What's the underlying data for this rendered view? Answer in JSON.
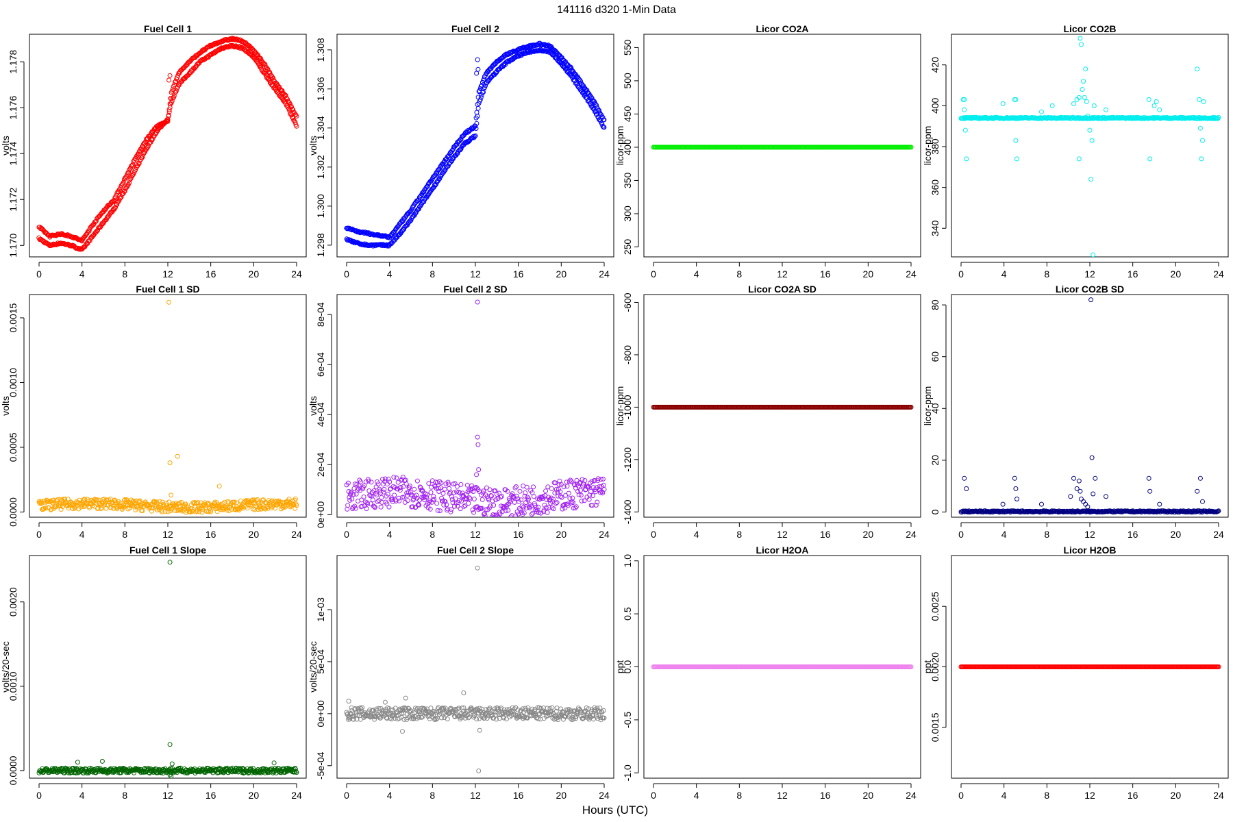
{
  "figure": {
    "title": "141116    d320    1-Min Data",
    "xlabel": "Hours (UTC)"
  },
  "chart_data": [
    {
      "type": "scatter",
      "title": "Fuel Cell 1",
      "ylabel": "volts",
      "color": "#ff0000",
      "xlim": [
        0,
        24
      ],
      "ylim": [
        1.1695,
        1.1792
      ],
      "xticks": [
        0,
        4,
        8,
        12,
        16,
        20,
        24
      ],
      "xtick_labels": [
        "0",
        "4",
        "8",
        "12",
        "16",
        "20",
        "24"
      ],
      "yticks": [
        1.17,
        1.172,
        1.174,
        1.176,
        1.178
      ],
      "ytick_labels": [
        "1.170",
        "1.172",
        "1.174",
        "1.176",
        "1.178"
      ],
      "series": [
        {
          "x": [
            0,
            1,
            2,
            3,
            4,
            5,
            6,
            7,
            8,
            9,
            10,
            11,
            12,
            12.3,
            13,
            14,
            15,
            16,
            17,
            18,
            19,
            20,
            21,
            22,
            23,
            24
          ],
          "y": [
            1.1703,
            1.17,
            1.1701,
            1.17,
            1.1698,
            1.1704,
            1.171,
            1.1716,
            1.1724,
            1.1733,
            1.1742,
            1.175,
            1.1755,
            1.1762,
            1.177,
            1.1775,
            1.178,
            1.1783,
            1.1786,
            1.1787,
            1.1786,
            1.1782,
            1.1775,
            1.1768,
            1.1762,
            1.1752
          ]
        },
        {
          "x": [
            0,
            1,
            2,
            3,
            4,
            5,
            6,
            7,
            8,
            9,
            10,
            11,
            12,
            12.3,
            13,
            14,
            15,
            16,
            17,
            18,
            19,
            20,
            21,
            22,
            23,
            24
          ],
          "y": [
            1.1708,
            1.1704,
            1.1705,
            1.1704,
            1.1702,
            1.1709,
            1.1715,
            1.172,
            1.1729,
            1.1738,
            1.1746,
            1.1752,
            1.1754,
            1.1766,
            1.1775,
            1.178,
            1.1784,
            1.1787,
            1.1789,
            1.179,
            1.1789,
            1.1785,
            1.1779,
            1.1771,
            1.1765,
            1.1756
          ]
        }
      ],
      "outliers": {
        "x": [
          12.1,
          12.2,
          12.3
        ],
        "y": [
          1.1772,
          1.1774,
          1.1764
        ]
      }
    },
    {
      "type": "scatter",
      "title": "Fuel Cell 2",
      "ylabel": "volts",
      "color": "#0000ff",
      "xlim": [
        0,
        24
      ],
      "ylim": [
        1.2974,
        1.3088
      ],
      "xticks": [
        0,
        4,
        8,
        12,
        16,
        20,
        24
      ],
      "xtick_labels": [
        "0",
        "4",
        "8",
        "12",
        "16",
        "20",
        "24"
      ],
      "yticks": [
        1.298,
        1.3,
        1.302,
        1.304,
        1.306,
        1.308
      ],
      "ytick_labels": [
        "1.298",
        "1.300",
        "1.302",
        "1.304",
        "1.306",
        "1.308"
      ],
      "series": [
        {
          "x": [
            0,
            1,
            2,
            3,
            4,
            5,
            6,
            7,
            8,
            9,
            10,
            11,
            12,
            12.3,
            13,
            14,
            15,
            16,
            17,
            18,
            19,
            20,
            21,
            22,
            23,
            24
          ],
          "y": [
            1.2983,
            1.2981,
            1.298,
            1.298,
            1.298,
            1.2986,
            1.2993,
            1.3001,
            1.3009,
            1.3017,
            1.3025,
            1.3032,
            1.3036,
            1.3052,
            1.3063,
            1.3069,
            1.3074,
            1.3077,
            1.3079,
            1.308,
            1.3079,
            1.3073,
            1.3066,
            1.3058,
            1.305,
            1.304
          ]
        },
        {
          "x": [
            0,
            1,
            2,
            3,
            4,
            5,
            6,
            7,
            8,
            9,
            10,
            11,
            12,
            12.3,
            13,
            14,
            15,
            16,
            17,
            18,
            19,
            20,
            21,
            22,
            23,
            24
          ],
          "y": [
            1.2989,
            1.2987,
            1.2986,
            1.2985,
            1.2984,
            1.2991,
            1.2998,
            1.3006,
            1.3014,
            1.3022,
            1.303,
            1.3037,
            1.3041,
            1.3058,
            1.3068,
            1.3074,
            1.3078,
            1.308,
            1.3082,
            1.3083,
            1.3082,
            1.3076,
            1.307,
            1.3062,
            1.3054,
            1.3044
          ]
        }
      ],
      "outliers": {
        "x": [
          12.1,
          12.2,
          12.25
        ],
        "y": [
          1.3068,
          1.3075,
          1.307
        ]
      }
    },
    {
      "type": "scatter",
      "title": "Licor CO2A",
      "ylabel": "licor-ppm",
      "color": "#00ee00",
      "xlim": [
        0,
        24
      ],
      "ylim": [
        235,
        570
      ],
      "xticks": [
        0,
        4,
        8,
        12,
        16,
        20,
        24
      ],
      "xtick_labels": [
        "0",
        "4",
        "8",
        "12",
        "16",
        "20",
        "24"
      ],
      "yticks": [
        250,
        300,
        350,
        400,
        450,
        500,
        550
      ],
      "ytick_labels": [
        "250",
        "300",
        "350",
        "400",
        "450",
        "500",
        "550"
      ],
      "constant": 400
    },
    {
      "type": "scatter",
      "title": "Licor CO2B",
      "ylabel": "licor-ppm",
      "color": "#00eeee",
      "xlim": [
        0,
        24
      ],
      "ylim": [
        326,
        435
      ],
      "xticks": [
        0,
        4,
        8,
        12,
        16,
        20,
        24
      ],
      "xtick_labels": [
        "0",
        "4",
        "8",
        "12",
        "16",
        "20",
        "24"
      ],
      "yticks": [
        340,
        360,
        380,
        400,
        420
      ],
      "ytick_labels": [
        "340",
        "360",
        "380",
        "400",
        "420"
      ],
      "baseline": 394,
      "outliers": {
        "x": [
          0.2,
          0.3,
          0.4,
          0.5,
          0.3,
          3.9,
          5,
          5.1,
          5.2,
          5.1,
          7.5,
          8.5,
          10.5,
          10.8,
          11,
          11,
          11.1,
          11.2,
          11.3,
          11.4,
          11.5,
          11.6,
          11.7,
          11.8,
          12,
          12.1,
          12.2,
          12.3,
          12.4,
          13.5,
          17.5,
          17.6,
          18,
          18.2,
          18.5,
          22,
          22.2,
          22.3,
          22.4,
          22.5,
          22.6
        ],
        "y": [
          403,
          398,
          388,
          374,
          403,
          401,
          403,
          383,
          374,
          403,
          397,
          400,
          401,
          403,
          374,
          404,
          433,
          430,
          408,
          412,
          404,
          418,
          402,
          395,
          388,
          364,
          383,
          327,
          400,
          398,
          403,
          374,
          400,
          402,
          398,
          418,
          403,
          389,
          374,
          383,
          402
        ]
      }
    },
    {
      "type": "scatter",
      "title": "Fuel Cell 1 SD",
      "ylabel": "volts",
      "color": "#ffa500",
      "xlim": [
        0,
        24
      ],
      "ylim": [
        -4e-05,
        0.00168
      ],
      "xticks": [
        0,
        4,
        8,
        12,
        16,
        20,
        24
      ],
      "xtick_labels": [
        "0",
        "4",
        "8",
        "12",
        "16",
        "20",
        "24"
      ],
      "yticks": [
        0,
        0.0005,
        0.001,
        0.0015
      ],
      "ytick_labels": [
        "0.0000",
        "0.0005",
        "0.0010",
        "0.0015"
      ],
      "baseline": 5e-05,
      "spread": 4e-05,
      "outliers": {
        "x": [
          12.1,
          12.2,
          12.9,
          16.8,
          12.3
        ],
        "y": [
          0.00162,
          0.00038,
          0.00043,
          0.0002,
          0.00013
        ]
      }
    },
    {
      "type": "scatter",
      "title": "Fuel Cell 2 SD",
      "ylabel": "volts",
      "color": "#a020f0",
      "xlim": [
        0,
        24
      ],
      "ylim": [
        -1e-05,
        0.00088
      ],
      "xticks": [
        0,
        4,
        8,
        12,
        16,
        20,
        24
      ],
      "xtick_labels": [
        "0",
        "4",
        "8",
        "12",
        "16",
        "20",
        "24"
      ],
      "yticks": [
        0,
        0.0002,
        0.0004,
        0.0006,
        0.0008
      ],
      "ytick_labels": [
        "0e+00",
        "2e-04",
        "4e-04",
        "6e-04",
        "8e-04"
      ],
      "baseline": 7e-05,
      "spread": 6e-05,
      "outliers": {
        "x": [
          12.2,
          12.2,
          12.25,
          12.3,
          12.1
        ],
        "y": [
          0.00085,
          0.00031,
          0.00028,
          0.00018,
          0.00016
        ]
      }
    },
    {
      "type": "scatter",
      "title": "Licor CO2A SD",
      "ylabel": "licor-ppm",
      "color": "#8b0000",
      "xlim": [
        0,
        24
      ],
      "ylim": [
        -1420,
        -570
      ],
      "xticks": [
        0,
        4,
        8,
        12,
        16,
        20,
        24
      ],
      "xtick_labels": [
        "0",
        "4",
        "8",
        "12",
        "16",
        "20",
        "24"
      ],
      "yticks": [
        -1400,
        -1200,
        -1000,
        -800,
        -600
      ],
      "ytick_labels": [
        "-1400",
        "-1200",
        "-1000",
        "-800",
        "-600"
      ],
      "constant": -1000
    },
    {
      "type": "scatter",
      "title": "Licor CO2B SD",
      "ylabel": "licor-ppm",
      "color": "#000080",
      "xlim": [
        0,
        24
      ],
      "ylim": [
        -2,
        84
      ],
      "xticks": [
        0,
        4,
        8,
        12,
        16,
        20,
        24
      ],
      "xtick_labels": [
        "0",
        "4",
        "8",
        "12",
        "16",
        "20",
        "24"
      ],
      "yticks": [
        0,
        20,
        40,
        60,
        80
      ],
      "ytick_labels": [
        "0",
        "20",
        "40",
        "60",
        "80"
      ],
      "baseline": 0.2,
      "outliers": {
        "x": [
          0.3,
          0.5,
          5,
          5.1,
          5.2,
          3.9,
          7.5,
          10.2,
          10.5,
          10.8,
          11,
          11.1,
          11.2,
          11.4,
          11.6,
          11.8,
          12.1,
          12.2,
          12.3,
          12.5,
          13.5,
          17.5,
          17.6,
          18.5,
          22,
          22.3,
          22.5
        ],
        "y": [
          13,
          9,
          13,
          9,
          5,
          3,
          3,
          6,
          13,
          9,
          12,
          8,
          5,
          4,
          3,
          2,
          82,
          21,
          7,
          13,
          6,
          13,
          8,
          3,
          8,
          13,
          4
        ]
      }
    },
    {
      "type": "scatter",
      "title": "Fuel Cell 1 Slope",
      "ylabel": "volts/20-sec",
      "color": "#006400",
      "xlim": [
        0,
        24
      ],
      "ylim": [
        -9e-05,
        0.00255
      ],
      "xticks": [
        0,
        4,
        8,
        12,
        16,
        20,
        24
      ],
      "xtick_labels": [
        "0",
        "4",
        "8",
        "12",
        "16",
        "20",
        "24"
      ],
      "yticks": [
        0,
        0.001,
        0.002
      ],
      "ytick_labels": [
        "0.0000",
        "0.0010",
        "0.0020"
      ],
      "baseline": 0,
      "spread": 3e-05,
      "outliers": {
        "x": [
          12.2,
          12.2,
          12.3,
          12.2,
          12.4,
          3.6,
          5.9,
          21.9
        ],
        "y": [
          0.00247,
          0.00031,
          -7e-05,
          -5e-05,
          8e-05,
          0.0001,
          0.00011,
          9e-05
        ]
      }
    },
    {
      "type": "scatter",
      "title": "Fuel Cell 2 Slope",
      "ylabel": "volts/20-sec",
      "color": "#888888",
      "xlim": [
        0,
        24
      ],
      "ylim": [
        -0.00062,
        0.00152
      ],
      "xticks": [
        0,
        4,
        8,
        12,
        16,
        20,
        24
      ],
      "xtick_labels": [
        "0",
        "4",
        "8",
        "12",
        "16",
        "20",
        "24"
      ],
      "yticks": [
        -0.0005,
        0,
        0.0005,
        0.001
      ],
      "ytick_labels": [
        "-5e-04",
        "0e+00",
        "5e-04",
        "1e-03"
      ],
      "baseline": 0,
      "spread": 6e-05,
      "outliers": {
        "x": [
          12.2,
          12.3,
          5.2,
          5.5,
          10.9,
          12.4,
          0.2,
          3.6
        ],
        "y": [
          0.0014,
          -0.00055,
          -0.00017,
          0.00015,
          0.0002,
          -0.00016,
          0.00012,
          0.00011
        ]
      }
    },
    {
      "type": "scatter",
      "title": "Licor H2OA",
      "ylabel": "ppt",
      "color": "#ee82ee",
      "xlim": [
        0,
        24
      ],
      "ylim": [
        -1.05,
        1.05
      ],
      "xticks": [
        0,
        4,
        8,
        12,
        16,
        20,
        24
      ],
      "xtick_labels": [
        "0",
        "4",
        "8",
        "12",
        "16",
        "20",
        "24"
      ],
      "yticks": [
        -1.0,
        -0.5,
        0,
        0.5,
        1.0
      ],
      "ytick_labels": [
        "-1.0",
        "-0.5",
        "0.0",
        "0.5",
        "1.0"
      ],
      "constant": 0
    },
    {
      "type": "scatter",
      "title": "Licor H2OB",
      "ylabel": "ppt",
      "color": "#ff0000",
      "xlim": [
        0,
        24
      ],
      "ylim": [
        0.00108,
        0.00292
      ],
      "xticks": [
        0,
        4,
        8,
        12,
        16,
        20,
        24
      ],
      "xtick_labels": [
        "0",
        "4",
        "8",
        "12",
        "16",
        "20",
        "24"
      ],
      "yticks": [
        0.0015,
        0.002,
        0.0025
      ],
      "ytick_labels": [
        "0.0015",
        "0.0020",
        "0.0025"
      ],
      "constant": 0.002
    }
  ]
}
